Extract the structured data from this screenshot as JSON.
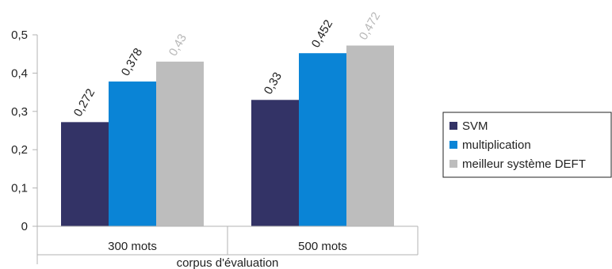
{
  "chart_data": {
    "type": "bar",
    "title": "",
    "xlabel": "corpus d'évaluation",
    "ylabel": "",
    "categories": [
      "300 mots",
      "500 mots"
    ],
    "series": [
      {
        "name": "SVM",
        "values": [
          0.272,
          0.33
        ],
        "labels": [
          "0,272",
          "0,33"
        ],
        "color": "#333366"
      },
      {
        "name": "multiplication",
        "values": [
          0.378,
          0.452
        ],
        "labels": [
          "0,378",
          "0,452"
        ],
        "color": "#0a84d6"
      },
      {
        "name": "meilleur système DEFT",
        "values": [
          0.43,
          0.472
        ],
        "labels": [
          "0,43",
          "0,472"
        ],
        "color": "#bdbdbd"
      }
    ],
    "ylim": [
      0,
      0.5
    ],
    "yticks": [
      {
        "value": 0,
        "label": "0"
      },
      {
        "value": 0.1,
        "label": "0,1"
      },
      {
        "value": 0.2,
        "label": "0,2"
      },
      {
        "value": 0.3,
        "label": "0,3"
      },
      {
        "value": 0.4,
        "label": "0,4"
      },
      {
        "value": 0.5,
        "label": "0,5"
      }
    ],
    "legend_position": "right",
    "grid": false,
    "colors": {
      "axis": "#b3b3b3",
      "text": "#222222",
      "legend_border": "#222222"
    }
  }
}
